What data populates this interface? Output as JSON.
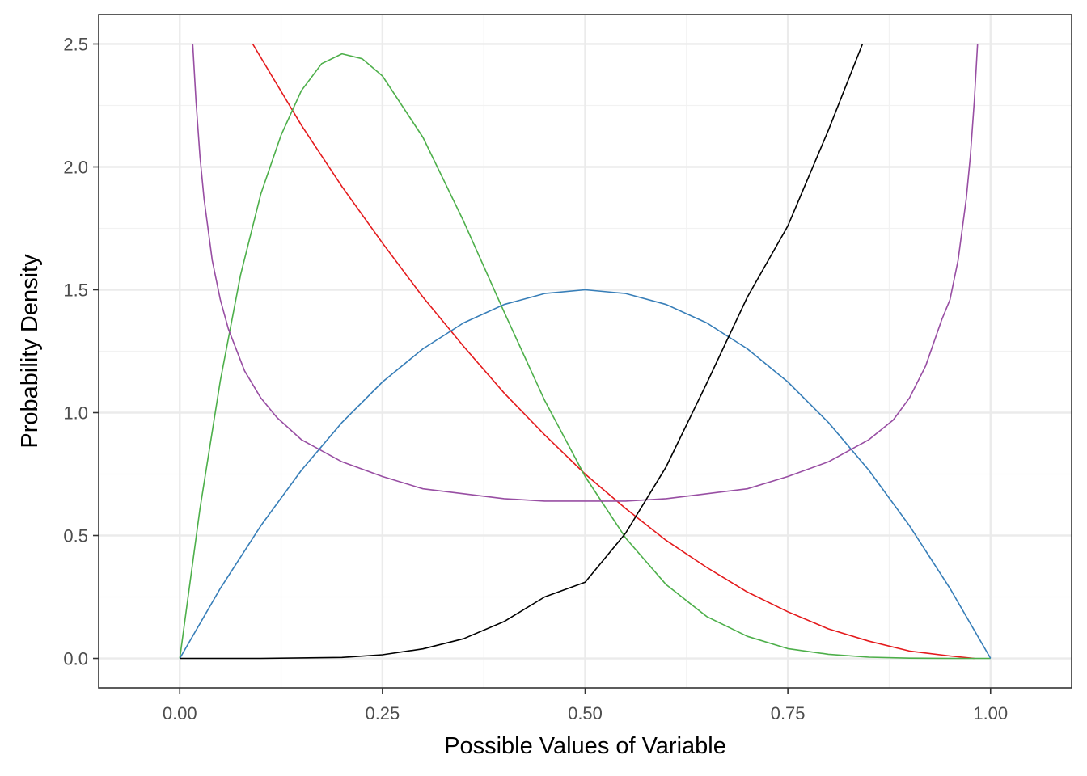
{
  "chart_data": {
    "type": "line",
    "title": "",
    "xlabel": "Possible Values of Variable",
    "ylabel": "Probability Density",
    "xlim": [
      -0.1,
      1.1
    ],
    "ylim": [
      -0.12,
      2.62
    ],
    "x_ticks": [
      0.0,
      0.25,
      0.5,
      0.75,
      1.0
    ],
    "x_tick_labels": [
      "0.00",
      "0.25",
      "0.50",
      "0.75",
      "1.00"
    ],
    "x_minor_ticks": [
      0.125,
      0.375,
      0.625,
      0.875
    ],
    "y_ticks": [
      0.0,
      0.5,
      1.0,
      1.5,
      2.0,
      2.5
    ],
    "y_tick_labels": [
      "0.0",
      "0.5",
      "1.0",
      "1.5",
      "2.0",
      "2.5"
    ],
    "y_minor_ticks": [
      0.25,
      0.75,
      1.25,
      1.75,
      2.25
    ],
    "grid": true,
    "theme": "bw",
    "legend": "none",
    "series": [
      {
        "color": "#e41a1c",
        "x": [
          0.09,
          0.15,
          0.2,
          0.25,
          0.3,
          0.35,
          0.4,
          0.45,
          0.5,
          0.55,
          0.6,
          0.65,
          0.7,
          0.75,
          0.8,
          0.85,
          0.9,
          0.95,
          0.98
        ],
        "y": [
          2.5,
          2.17,
          1.92,
          1.69,
          1.47,
          1.27,
          1.08,
          0.91,
          0.75,
          0.61,
          0.48,
          0.37,
          0.27,
          0.19,
          0.12,
          0.07,
          0.03,
          0.01,
          0.0
        ]
      },
      {
        "color": "#4daf4a",
        "x": [
          0.0,
          0.025,
          0.05,
          0.075,
          0.1,
          0.125,
          0.15,
          0.175,
          0.2,
          0.225,
          0.25,
          0.3,
          0.35,
          0.4,
          0.45,
          0.5,
          0.55,
          0.6,
          0.65,
          0.7,
          0.75,
          0.8,
          0.85,
          0.9,
          0.95,
          1.0
        ],
        "y": [
          0.0,
          0.61,
          1.13,
          1.56,
          1.89,
          2.13,
          2.31,
          2.42,
          2.46,
          2.44,
          2.37,
          2.12,
          1.78,
          1.41,
          1.05,
          0.74,
          0.49,
          0.3,
          0.17,
          0.09,
          0.04,
          0.017,
          0.005,
          0.001,
          0.0,
          0.0
        ]
      },
      {
        "color": "#377eb8",
        "x": [
          0.0,
          0.05,
          0.1,
          0.15,
          0.2,
          0.25,
          0.3,
          0.35,
          0.4,
          0.45,
          0.5,
          0.55,
          0.6,
          0.65,
          0.7,
          0.75,
          0.8,
          0.85,
          0.9,
          0.95,
          1.0
        ],
        "y": [
          0.0,
          0.285,
          0.54,
          0.765,
          0.96,
          1.125,
          1.26,
          1.365,
          1.44,
          1.485,
          1.5,
          1.485,
          1.44,
          1.365,
          1.26,
          1.125,
          0.96,
          0.765,
          0.54,
          0.285,
          0.0
        ]
      },
      {
        "color": "#984ea3",
        "x": [
          0.016,
          0.02,
          0.025,
          0.03,
          0.04,
          0.05,
          0.06,
          0.08,
          0.1,
          0.12,
          0.15,
          0.2,
          0.25,
          0.3,
          0.35,
          0.4,
          0.45,
          0.5,
          0.55,
          0.6,
          0.65,
          0.7,
          0.75,
          0.8,
          0.85,
          0.88,
          0.9,
          0.92,
          0.94,
          0.95,
          0.96,
          0.97,
          0.975,
          0.98,
          0.984
        ],
        "y": [
          2.5,
          2.27,
          2.04,
          1.87,
          1.62,
          1.46,
          1.34,
          1.17,
          1.06,
          0.98,
          0.89,
          0.8,
          0.74,
          0.69,
          0.67,
          0.65,
          0.64,
          0.64,
          0.64,
          0.65,
          0.67,
          0.69,
          0.74,
          0.8,
          0.89,
          0.97,
          1.06,
          1.19,
          1.38,
          1.46,
          1.62,
          1.87,
          2.04,
          2.27,
          2.5
        ]
      },
      {
        "color": "#000000",
        "x": [
          0.0,
          0.1,
          0.2,
          0.25,
          0.3,
          0.35,
          0.4,
          0.45,
          0.5,
          0.55,
          0.6,
          0.65,
          0.7,
          0.75,
          0.8,
          0.842
        ],
        "y": [
          0.0,
          0.0,
          0.004,
          0.015,
          0.039,
          0.08,
          0.15,
          0.25,
          0.31,
          0.51,
          0.78,
          1.12,
          1.47,
          1.76,
          2.15,
          2.5
        ]
      }
    ]
  }
}
